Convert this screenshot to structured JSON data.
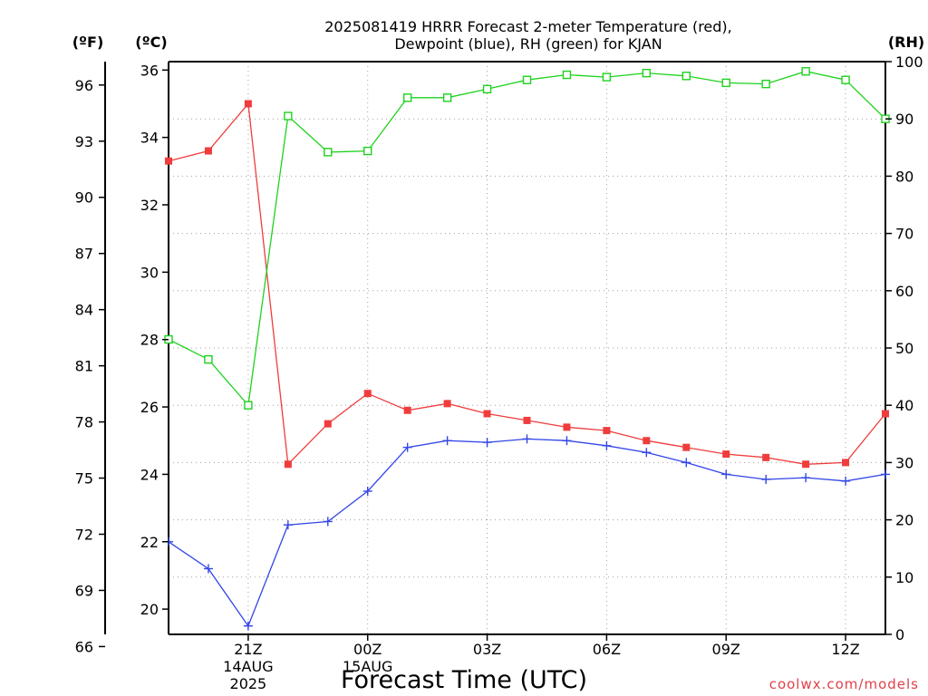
{
  "chart_data": {
    "type": "line",
    "title_line1": "2025081419 HRRR Forecast 2-meter Temperature (red),",
    "title_line2": "Dewpoint (blue), RH (green) for KJAN",
    "xlabel": "Forecast Time (UTC)",
    "credit": "coolwx.com/models",
    "axes": {
      "left_outer_unit": "(ºF)",
      "left_inner_unit": "(ºC)",
      "right_unit": "(RH)",
      "celsius_range": [
        19.25,
        36.25
      ],
      "rh_range": [
        0,
        100
      ],
      "fahrenheit_ticks": [
        "66",
        "69",
        "72",
        "75",
        "78",
        "81",
        "84",
        "87",
        "90",
        "93",
        "96"
      ],
      "celsius_ticks": [
        "20",
        "22",
        "24",
        "26",
        "28",
        "30",
        "32",
        "34",
        "36"
      ],
      "rh_ticks": [
        "0",
        "10",
        "20",
        "30",
        "40",
        "50",
        "60",
        "70",
        "80",
        "90",
        "100"
      ]
    },
    "x_range": [
      19,
      37
    ],
    "x_ticks": [
      {
        "x": 21,
        "lines": [
          "21Z",
          "14AUG",
          "2025"
        ]
      },
      {
        "x": 24,
        "lines": [
          "00Z",
          "15AUG"
        ]
      },
      {
        "x": 27,
        "lines": [
          "03Z"
        ]
      },
      {
        "x": 30,
        "lines": [
          "06Z"
        ]
      },
      {
        "x": 33,
        "lines": [
          "09Z"
        ]
      },
      {
        "x": 36,
        "lines": [
          "12Z"
        ]
      }
    ],
    "x": [
      19,
      20,
      21,
      22,
      23,
      24,
      25,
      26,
      27,
      28,
      29,
      30,
      31,
      32,
      33,
      34,
      35,
      36,
      37
    ],
    "series": [
      {
        "name": "Temperature",
        "axis": "celsius",
        "color": "#f03c3c",
        "marker": "filled-square",
        "values": [
          33.3,
          33.6,
          35.0,
          24.3,
          25.5,
          26.4,
          25.9,
          26.1,
          25.8,
          25.6,
          25.4,
          25.3,
          25.0,
          24.8,
          24.6,
          24.5,
          24.3,
          24.35,
          25.8
        ]
      },
      {
        "name": "Dewpoint",
        "axis": "celsius",
        "color": "#3246e6",
        "marker": "plus",
        "values": [
          22.0,
          21.2,
          19.5,
          22.5,
          22.6,
          23.5,
          24.8,
          25.0,
          24.95,
          25.05,
          25.0,
          24.85,
          24.65,
          24.35,
          24.0,
          23.85,
          23.9,
          23.8,
          24.0
        ]
      },
      {
        "name": "RH",
        "axis": "rh",
        "color": "#1ed21e",
        "marker": "open-square",
        "values": [
          51.5,
          48.0,
          40.0,
          90.5,
          84.2,
          84.4,
          93.7,
          93.7,
          95.2,
          96.8,
          97.7,
          97.3,
          98.0,
          97.5,
          96.3,
          96.1,
          98.3,
          96.8,
          90.0
        ]
      }
    ],
    "grid": true
  }
}
